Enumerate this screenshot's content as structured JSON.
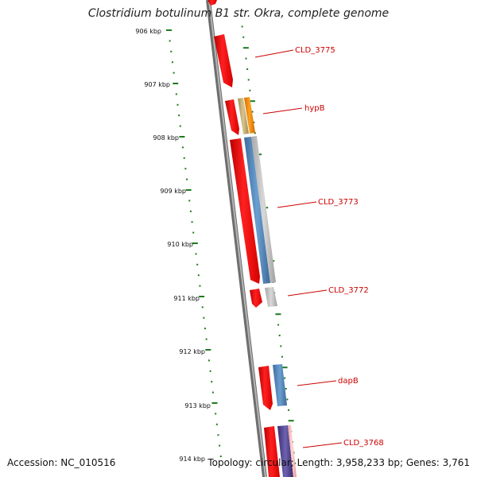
{
  "title": "Clostridium botulinum B1 str. Okra, complete genome",
  "footer": {
    "accession": "Accession: NC_010516",
    "summary": "Topology: circular; Length: 3,958,233 bp; Genes: 3,761"
  },
  "scale_labels": [
    "906 kbp",
    "907 kbp",
    "908 kbp",
    "909 kbp",
    "910 kbp",
    "911 kbp",
    "912 kbp",
    "913 kbp",
    "914 kbp"
  ],
  "gene_labels": [
    "CLD_3775",
    "hypB",
    "CLD_3773",
    "CLD_3772",
    "dapB",
    "CLD_3768"
  ],
  "colors": {
    "backbone": "#7a7a7a",
    "tick": "#1f7a1f",
    "cds_red": "#ee1111",
    "blue": "#4a7fb5",
    "gray": "#b8b8b8",
    "tan": "#c8b070",
    "orange": "#f08c00",
    "navy": "#4b3f8a",
    "label": "#cc0000"
  }
}
